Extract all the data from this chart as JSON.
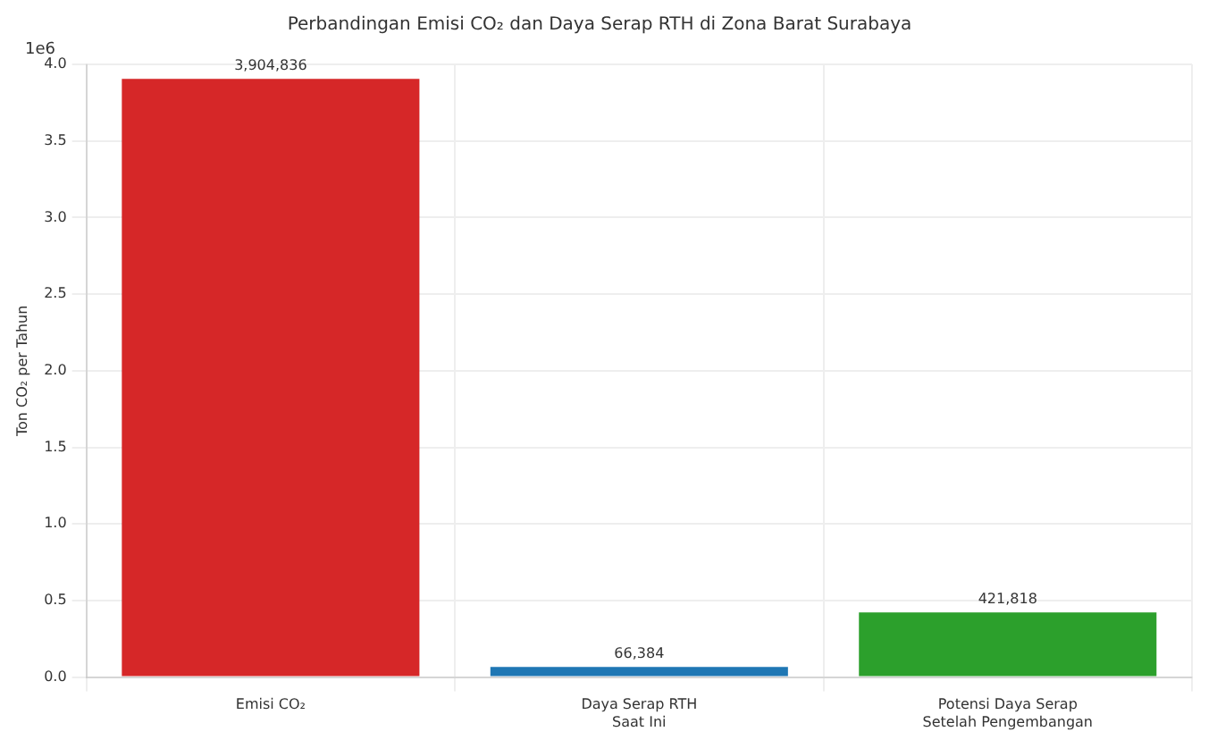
{
  "chart_data": {
    "type": "bar",
    "title": "Perbandingan Emisi CO₂ dan Daya Serap RTH di Zona Barat Surabaya",
    "ylabel": "Ton CO₂ per Tahun",
    "categories": [
      "Emisi CO₂",
      "Daya Serap RTH Saat Ini",
      "Potensi Daya Serap Setelah Pengembangan"
    ],
    "values": [
      3.905,
      0.066,
      0.422
    ],
    "colors": [
      "#d62728",
      "#1f77b4",
      "#2ca02c"
    ],
    "ylim": [
      0,
      4
    ],
    "yticks": [
      {
        "value": 0,
        "label": "0.0"
      },
      0.5,
      {
        "value": 1,
        "label": "1.0"
      },
      1.5,
      {
        "value": 2,
        "label": "2.0"
      },
      2.5,
      {
        "value": 3,
        "label": "3.0"
      },
      3.5,
      {
        "value": 4,
        "label": "4.0"
      }
    ],
    "annotations": [
      "1e6",
      {
        "text": "3,904,836",
        "x": "Emisi CO₂",
        "y": 3.905
      },
      {
        "text": "66,384",
        "x": "Daya Serap RTH Saat Ini",
        "y": 0.066
      },
      {
        "text": "421,818",
        "x": "Potensi Daya Serap Setelah Pengembangan",
        "y": 0.422
      }
    ],
    "grid": true,
    "legend": false
  }
}
